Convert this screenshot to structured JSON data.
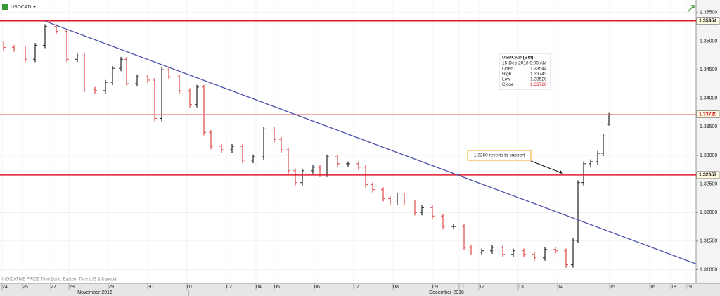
{
  "chart_data": {
    "type": "ohlc",
    "symbol": "USDCAD",
    "footer": "INDICATIVE PRICE   Time Zone: Eastern Time (US & Canada)",
    "months": [
      "November 2016",
      "December 2016"
    ],
    "xlim": [
      0,
      99
    ],
    "xticks": [
      {
        "value": 0.7,
        "label": "24"
      },
      {
        "value": 3.6,
        "label": "25"
      },
      {
        "value": 7.6,
        "label": "27"
      },
      {
        "value": 10.2,
        "label": "28"
      },
      {
        "value": 15.8,
        "label": "29"
      },
      {
        "value": 21.4,
        "label": "30"
      },
      {
        "value": 27.0,
        "label": "01"
      },
      {
        "value": 32.6,
        "label": "02"
      },
      {
        "value": 36.8,
        "label": "04"
      },
      {
        "value": 39.4,
        "label": "05"
      },
      {
        "value": 45.1,
        "label": "06"
      },
      {
        "value": 50.7,
        "label": "07"
      },
      {
        "value": 56.3,
        "label": "08"
      },
      {
        "value": 61.9,
        "label": "09"
      },
      {
        "value": 65.7,
        "label": "11"
      },
      {
        "value": 68.5,
        "label": "12"
      },
      {
        "value": 74.1,
        "label": "13"
      },
      {
        "value": 79.7,
        "label": "14"
      },
      {
        "value": 87.1,
        "label": "15"
      },
      {
        "value": 92.8,
        "label": "16"
      },
      {
        "value": 95.8,
        "label": "18"
      },
      {
        "value": 98.0,
        "label": "19"
      }
    ],
    "ylim": [
      1.3076,
      1.3572
    ],
    "yticks": [
      {
        "value": 1.355,
        "label": "1.35500"
      },
      {
        "value": 1.35,
        "label": "1.35000"
      },
      {
        "value": 1.345,
        "label": "1.34500"
      },
      {
        "value": 1.34,
        "label": "1.34000"
      },
      {
        "value": 1.335,
        "label": "1.33500"
      },
      {
        "value": 1.33,
        "label": "1.33000"
      },
      {
        "value": 1.325,
        "label": "1.32500"
      },
      {
        "value": 1.32,
        "label": "1.32000"
      },
      {
        "value": 1.315,
        "label": "1.31500"
      },
      {
        "value": 1.31,
        "label": "1.31000"
      }
    ],
    "grid": true,
    "up_color": "#222222",
    "down_color": "#e04848",
    "x": [
      0.5,
      2.0,
      3.6,
      5.0,
      6.4,
      8.0,
      9.5,
      11.0,
      12.0,
      13.5,
      15.0,
      16.0,
      17.2,
      18.0,
      19.5,
      21.0,
      22.0,
      23.0,
      24.0,
      25.5,
      27.0,
      28.0,
      29.0,
      30.0,
      31.5,
      33.0,
      34.5,
      36.0,
      37.5,
      39.0,
      40.0,
      41.0,
      42.0,
      43.0,
      44.5,
      45.5,
      46.5,
      48.0,
      49.5,
      51.0,
      52.0,
      53.0,
      54.5,
      55.5,
      56.5,
      57.5,
      59.0,
      60.0,
      61.5,
      63.0,
      64.5,
      66.0,
      67.0,
      68.5,
      70.0,
      71.5,
      73.0,
      74.5,
      76.0,
      77.5,
      79.0,
      80.5,
      81.5,
      82.2,
      83.0,
      84.0,
      85.0,
      85.8,
      86.6
    ],
    "open": [
      1.3495,
      1.3489,
      1.34866,
      1.34683,
      1.34927,
      1.35256,
      1.35171,
      1.34683,
      1.34744,
      1.34159,
      1.34134,
      1.3428,
      1.34524,
      1.34683,
      1.34256,
      1.34378,
      1.34317,
      1.33646,
      1.345,
      1.34378,
      1.34134,
      1.3389,
      1.34195,
      1.33402,
      1.33159,
      1.33098,
      1.33159,
      1.32915,
      1.32976,
      1.33463,
      1.3328,
      1.33098,
      1.32732,
      1.32524,
      1.32732,
      1.32793,
      1.32671,
      1.32976,
      1.32854,
      1.32854,
      1.32793,
      1.32488,
      1.32402,
      1.32244,
      1.32183,
      1.32305,
      1.32183,
      1.32,
      1.32085,
      1.31939,
      1.31756,
      1.31756,
      1.3139,
      1.31305,
      1.31329,
      1.3139,
      1.31268,
      1.31329,
      1.31268,
      1.31207,
      1.31354,
      1.31329,
      1.31085,
      1.31512,
      1.32524,
      1.32854,
      1.3289,
      1.33037,
      1.33544
    ],
    "high": [
      1.3499,
      1.3493,
      1.34906,
      1.34967,
      1.35296,
      1.35296,
      1.35211,
      1.34784,
      1.34784,
      1.34199,
      1.3432,
      1.34564,
      1.34723,
      1.34723,
      1.34418,
      1.34418,
      1.34357,
      1.3454,
      1.3454,
      1.34418,
      1.34174,
      1.34235,
      1.34235,
      1.33442,
      1.33199,
      1.33199,
      1.33199,
      1.33016,
      1.33503,
      1.33503,
      1.3332,
      1.33138,
      1.32772,
      1.32772,
      1.32833,
      1.32833,
      1.33016,
      1.33016,
      1.32894,
      1.32894,
      1.32833,
      1.32528,
      1.32442,
      1.32284,
      1.32345,
      1.32345,
      1.32223,
      1.32125,
      1.32125,
      1.31979,
      1.31796,
      1.31796,
      1.3143,
      1.31369,
      1.3143,
      1.3143,
      1.31369,
      1.31369,
      1.31308,
      1.31394,
      1.31394,
      1.31369,
      1.31552,
      1.32564,
      1.32894,
      1.3293,
      1.33077,
      1.33381,
      1.33743
    ],
    "low": [
      1.3484,
      1.34816,
      1.34633,
      1.34633,
      1.34877,
      1.35121,
      1.34633,
      1.34633,
      1.34109,
      1.34084,
      1.34084,
      1.3423,
      1.34474,
      1.34206,
      1.34206,
      1.34267,
      1.33596,
      1.33596,
      1.34328,
      1.34084,
      1.3384,
      1.3384,
      1.33352,
      1.33109,
      1.33048,
      1.33048,
      1.32865,
      1.32865,
      1.32926,
      1.3323,
      1.33048,
      1.32682,
      1.32474,
      1.32474,
      1.32682,
      1.32621,
      1.32621,
      1.32804,
      1.32804,
      1.32743,
      1.32438,
      1.32352,
      1.32194,
      1.32133,
      1.32133,
      1.32133,
      1.3195,
      1.3195,
      1.31889,
      1.31706,
      1.31706,
      1.3134,
      1.31255,
      1.31255,
      1.31279,
      1.31218,
      1.31218,
      1.31218,
      1.31157,
      1.31157,
      1.31279,
      1.31035,
      1.31035,
      1.31462,
      1.32474,
      1.32804,
      1.3284,
      1.32987,
      1.3352
    ],
    "close": [
      1.3489,
      1.34866,
      1.34683,
      1.34927,
      1.35256,
      1.35171,
      1.34683,
      1.34744,
      1.34159,
      1.34134,
      1.3428,
      1.34524,
      1.34683,
      1.34256,
      1.34378,
      1.34317,
      1.33646,
      1.345,
      1.34378,
      1.34134,
      1.3389,
      1.34195,
      1.33402,
      1.33159,
      1.33098,
      1.33159,
      1.32915,
      1.32976,
      1.33463,
      1.3328,
      1.33098,
      1.32732,
      1.32524,
      1.32732,
      1.32793,
      1.32671,
      1.32976,
      1.32854,
      1.32854,
      1.32793,
      1.32488,
      1.32402,
      1.32244,
      1.32183,
      1.32305,
      1.32183,
      1.32,
      1.32085,
      1.31939,
      1.31756,
      1.31756,
      1.3139,
      1.31305,
      1.31329,
      1.3139,
      1.31268,
      1.31329,
      1.31268,
      1.31207,
      1.31354,
      1.31329,
      1.31085,
      1.31512,
      1.32524,
      1.32854,
      1.3289,
      1.33037,
      1.33341,
      1.3372
    ],
    "levels": [
      {
        "value": 1.35354,
        "label": "1.35354",
        "color": "#e0192b",
        "width": 1.6
      },
      {
        "value": 1.3372,
        "label": "1.33720",
        "color": "#f08a8a",
        "width": 0.8
      },
      {
        "value": 1.32657,
        "label": "1.32657",
        "color": "#e0192b",
        "width": 1.6
      }
    ],
    "trendline": {
      "x": [
        6.4,
        99
      ],
      "y": [
        1.3535,
        1.311
      ],
      "color": "#4a4fa8"
    },
    "annotation": "1.3260 reverts to support",
    "tooltip": {
      "title": "USDCAD (Bid)",
      "date": "15-Dec-2016 9:00 AM",
      "rows": [
        [
          "Open",
          "1.33544"
        ],
        [
          "High",
          "1.33743"
        ],
        [
          "Low",
          "1.33520"
        ],
        [
          "Close",
          "1.33720"
        ]
      ]
    }
  }
}
